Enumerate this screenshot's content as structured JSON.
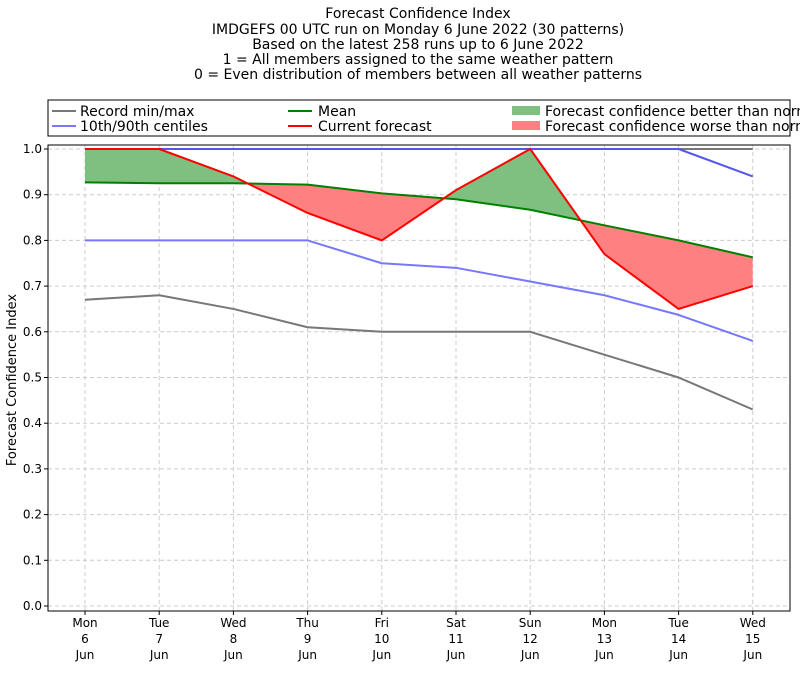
{
  "chart_data": {
    "type": "line",
    "title_lines": [
      "Forecast Confidence Index",
      "IMDGEFS 00 UTC run on Monday 6 June 2022 (30 patterns)",
      "Based on the latest 258 runs up to 6 June 2022",
      "1 = All members assigned to the same weather pattern",
      "0 = Even distribution of members between all weather patterns"
    ],
    "ylabel": "Forecast Confidence Index",
    "xlabel": "",
    "ylim": [
      0,
      1.0
    ],
    "yticks": [
      "0.0",
      "0.1",
      "0.2",
      "0.3",
      "0.4",
      "0.5",
      "0.6",
      "0.7",
      "0.8",
      "0.9",
      "1.0"
    ],
    "grid": true,
    "legend_placement": "top, above plot",
    "categories": [
      [
        "Mon",
        "6",
        "Jun"
      ],
      [
        "Tue",
        "7",
        "Jun"
      ],
      [
        "Wed",
        "8",
        "Jun"
      ],
      [
        "Thu",
        "9",
        "Jun"
      ],
      [
        "Fri",
        "10",
        "Jun"
      ],
      [
        "Sat",
        "11",
        "Jun"
      ],
      [
        "Sun",
        "12",
        "Jun"
      ],
      [
        "Mon",
        "13",
        "Jun"
      ],
      [
        "Tue",
        "14",
        "Jun"
      ],
      [
        "Wed",
        "15",
        "Jun"
      ]
    ],
    "series": [
      {
        "name": "Record min",
        "legend": "Record min/max",
        "color": "#777777",
        "values": [
          0.67,
          0.68,
          0.65,
          0.61,
          0.6,
          0.6,
          0.6,
          0.55,
          0.5,
          0.43
        ]
      },
      {
        "name": "Record max",
        "color": "#777777",
        "values": [
          1.0,
          1.0,
          1.0,
          1.0,
          1.0,
          1.0,
          1.0,
          1.0,
          1.0,
          1.0
        ]
      },
      {
        "name": "10th centile",
        "legend": "10th/90th centiles",
        "color": "#7777ff",
        "values": [
          0.8,
          0.8,
          0.8,
          0.8,
          0.75,
          0.74,
          0.71,
          0.68,
          0.637,
          0.58
        ]
      },
      {
        "name": "90th centile",
        "color": "#7777ff",
        "values": [
          1.0,
          1.0,
          1.0,
          1.0,
          1.0,
          1.0,
          1.0,
          1.0,
          1.0,
          0.94
        ]
      },
      {
        "name": "Mean",
        "legend": "Mean",
        "color": "#008000",
        "values": [
          0.927,
          0.925,
          0.925,
          0.922,
          0.903,
          0.89,
          0.867,
          0.833,
          0.8,
          0.763
        ]
      },
      {
        "name": "Current forecast",
        "legend": "Current forecast",
        "color": "#ff0000",
        "values": [
          1.0,
          1.0,
          0.94,
          0.86,
          0.8,
          0.91,
          1.0,
          0.77,
          0.65,
          0.7
        ]
      }
    ],
    "fills": [
      {
        "legend": "Forecast confidence better than normal",
        "color": "#7fbf7f"
      },
      {
        "legend": "Forecast confidence worse than normal",
        "color": "#ff8080"
      }
    ]
  }
}
